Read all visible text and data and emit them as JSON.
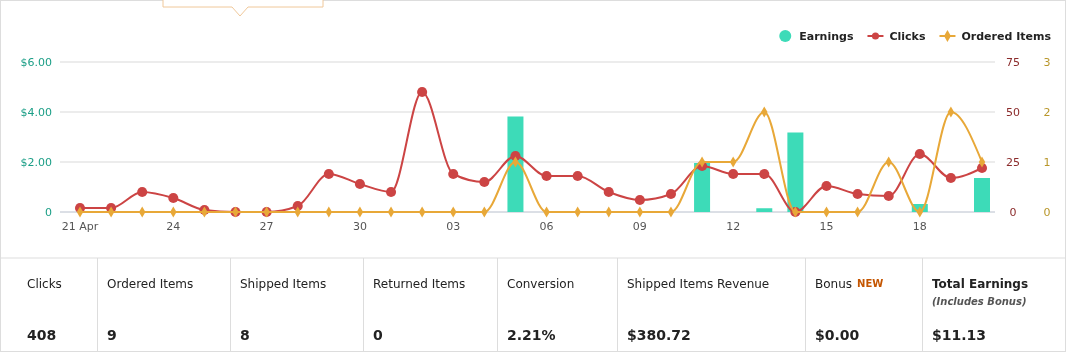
{
  "chart_data": [
    {
      "type": "bar",
      "categories": [
        "21 Apr",
        null,
        null,
        "24",
        null,
        null,
        "27",
        null,
        null,
        "30",
        null,
        null,
        "03",
        null,
        null,
        "06",
        null,
        null,
        "09",
        null,
        null,
        "12",
        null,
        null,
        "15",
        null,
        null,
        "18",
        null,
        null
      ],
      "series": [
        {
          "name": "Earnings",
          "type": "bar",
          "color": "#3ddbb8",
          "values": [
            0,
            0,
            0,
            0,
            0,
            0,
            0,
            0,
            0,
            0,
            0,
            0,
            0,
            0,
            3.82,
            0,
            0,
            0,
            0,
            0,
            1.96,
            0,
            0.15,
            3.18,
            0,
            0,
            0,
            0.32,
            0,
            1.36
          ]
        },
        {
          "name": "Clicks",
          "type": "line",
          "axis": "y2",
          "color": "#cc4444",
          "marker": "circle",
          "values": [
            2,
            2,
            10,
            7,
            1,
            0,
            0,
            3,
            19,
            14,
            10,
            60,
            19,
            15,
            28,
            18,
            18,
            10,
            6,
            9,
            23,
            19,
            19,
            0,
            13,
            9,
            8,
            29,
            17,
            22
          ]
        },
        {
          "name": "Ordered Items",
          "type": "line",
          "axis": "y3",
          "color": "#e8a838",
          "marker": "diamond",
          "values": [
            0,
            0,
            0,
            0,
            0,
            0,
            0,
            0,
            0,
            0,
            0,
            0,
            0,
            0,
            1,
            0,
            0,
            0,
            0,
            0,
            1,
            1,
            2,
            0,
            0,
            0,
            1,
            0,
            2,
            1
          ]
        }
      ],
      "ylim": [
        0,
        6
      ],
      "yticks": [
        0,
        {
          "value": 2,
          "label": "$2.00"
        },
        {
          "value": 4,
          "label": "$4.00"
        },
        {
          "value": 6,
          "label": "$6.00"
        }
      ],
      "y2lim": [
        0,
        75
      ],
      "y2ticks": [
        0,
        25,
        50,
        75
      ],
      "y3lim": [
        0,
        3
      ],
      "y3ticks": [
        0,
        1,
        2,
        3
      ],
      "grid": "y",
      "legend": "top right"
    },
    {
      "type": "other",
      "categories": [
        "Clicks",
        "Ordered Items",
        "Shipped Items",
        "Returned Items",
        "Conversion",
        "Shipped Items Revenue",
        "Bonus",
        "Total Earnings"
      ],
      "value_labels": [
        "408",
        "9",
        "8",
        "0",
        "2.21%",
        "$380.72",
        "$0.00",
        "$11.13"
      ],
      "annotations": [
        "NEW",
        "(Includes Bonus)"
      ]
    }
  ]
}
